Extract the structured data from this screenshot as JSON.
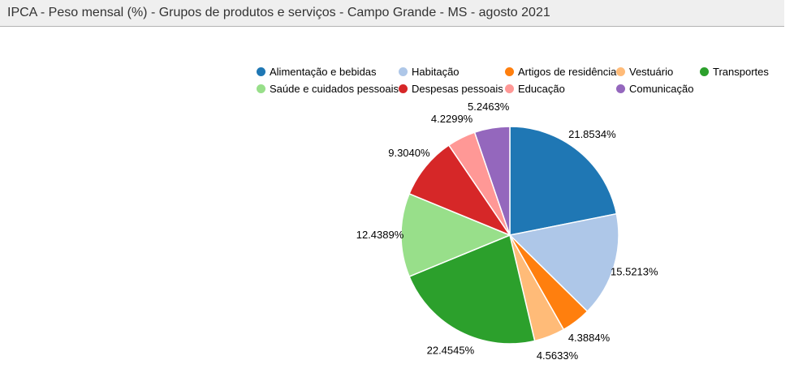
{
  "header": {
    "title": "IPCA - Peso mensal (%) - Grupos de produtos e serviços - Campo Grande - MS - agosto 2021"
  },
  "chart_data": {
    "type": "pie",
    "title": "IPCA - Peso mensal (%) - Grupos de produtos e serviços - Campo Grande - MS - agosto 2021",
    "unit": "%",
    "start_angle_deg": 0,
    "direction": "clockwise",
    "legend_position": "top",
    "categories": [
      "Alimentação e bebidas",
      "Habitação",
      "Artigos de residência",
      "Vestuário",
      "Transportes",
      "Saúde e cuidados pessoais",
      "Despesas pessoais",
      "Educação",
      "Comunicação"
    ],
    "values": [
      21.8534,
      15.5213,
      4.3884,
      4.5633,
      22.4545,
      12.4389,
      9.304,
      4.2299,
      5.2463
    ],
    "labels": [
      "21.8534%",
      "15.5213%",
      "4.3884%",
      "4.5633%",
      "22.4545%",
      "12.4389%",
      "9.3040%",
      "4.2299%",
      "5.2463%"
    ],
    "colors": [
      "#1F77B4",
      "#AEC7E8",
      "#FF7F0E",
      "#FFBB78",
      "#2CA02C",
      "#98DF8A",
      "#D62728",
      "#FF9896",
      "#9467BD"
    ],
    "total": 100
  },
  "colors": {
    "header_bg": "#EFEFEF",
    "header_border": "#B3B3B3",
    "header_text": "#333333",
    "slice_border": "#FFFFFF",
    "label_text": "#000000"
  }
}
